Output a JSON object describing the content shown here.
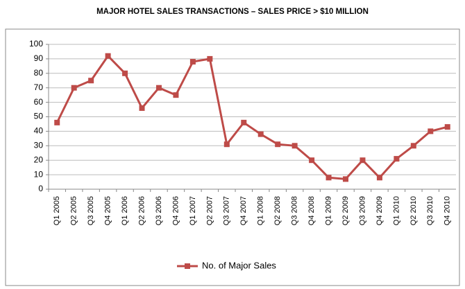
{
  "chart_data": {
    "type": "line",
    "title": "MAJOR HOTEL SALES TRANSACTIONS – SALES PRICE > $10 MILLION",
    "categories": [
      "Q1 2005",
      "Q2 2005",
      "Q3 2005",
      "Q4 2005",
      "Q1 2006",
      "Q2 2006",
      "Q3 2006",
      "Q4 2006",
      "Q1 2007",
      "Q2 2007",
      "Q3 2007",
      "Q4 2007",
      "Q1 2008",
      "Q2 2008",
      "Q3 2008",
      "Q4 2008",
      "Q1 2009",
      "Q2 2009",
      "Q3 2009",
      "Q4 2009",
      "Q1 2010",
      "Q2 2010",
      "Q3 2010",
      "Q4 2010"
    ],
    "series": [
      {
        "name": "No. of Major Sales",
        "color": "#be4b48",
        "values": [
          46,
          70,
          75,
          92,
          80,
          56,
          70,
          65,
          88,
          90,
          31,
          46,
          38,
          31,
          30,
          20,
          8,
          7,
          20,
          8,
          21,
          30,
          40,
          43
        ]
      }
    ],
    "ylim": [
      0,
      100
    ],
    "yticks": [
      0,
      10,
      20,
      30,
      40,
      50,
      60,
      70,
      80,
      90,
      100
    ],
    "grid": true,
    "legend": "bottom"
  }
}
